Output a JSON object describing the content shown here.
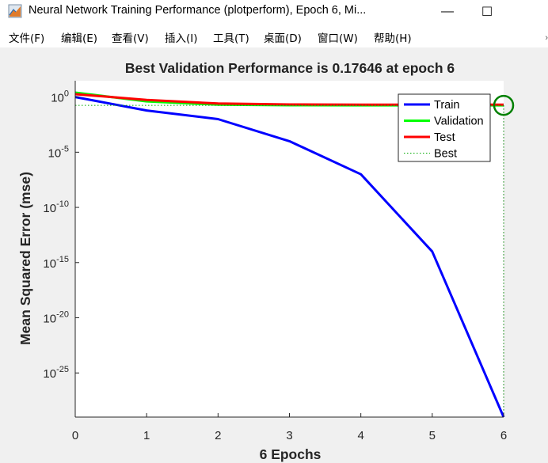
{
  "window": {
    "title": "Neural Network Training Performance (plotperform), Epoch 6, Mi...",
    "minimize_glyph": "—",
    "maximize_glyph": "☐",
    "app_icon": "matlab-figure-icon"
  },
  "menu": {
    "items": [
      "文件(F)",
      "编辑(E)",
      "查看(V)",
      "插入(I)",
      "工具(T)",
      "桌面(D)",
      "窗口(W)",
      "帮助(H)"
    ]
  },
  "chart_data": {
    "type": "line",
    "title": "Best Validation Performance is 0.17646 at epoch 6",
    "xlabel": "6 Epochs",
    "ylabel": "Mean Squared Error  (mse)",
    "xlim": [
      0,
      6
    ],
    "ylim": [
      1e-29,
      30
    ],
    "yscale": "log",
    "xticks": [
      0,
      1,
      2,
      3,
      4,
      5,
      6
    ],
    "yticks": [
      {
        "value": 1,
        "base": "10",
        "exp": "0"
      },
      {
        "value": 1e-05,
        "base": "10",
        "exp": "-5"
      },
      {
        "value": 1e-10,
        "base": "10",
        "exp": "-10"
      },
      {
        "value": 1e-15,
        "base": "10",
        "exp": "-15"
      },
      {
        "value": 1e-20,
        "base": "10",
        "exp": "-20"
      },
      {
        "value": 1e-25,
        "base": "10",
        "exp": "-25"
      }
    ],
    "grid": false,
    "legend_position": "top-right",
    "series": [
      {
        "name": "Train",
        "color": "#0000ff",
        "style": "solid",
        "x": [
          0,
          1,
          2,
          3,
          4,
          5,
          6
        ],
        "y": [
          1.0,
          0.06,
          0.01,
          0.0001,
          1e-07,
          1e-14,
          1e-29
        ]
      },
      {
        "name": "Validation",
        "color": "#00ff00",
        "style": "solid",
        "x": [
          0,
          1,
          2,
          3,
          4,
          5,
          6
        ],
        "y": [
          2.5,
          0.4,
          0.2,
          0.18,
          0.177,
          0.1765,
          0.17646
        ]
      },
      {
        "name": "Test",
        "color": "#ff0000",
        "style": "solid",
        "x": [
          0,
          1,
          2,
          3,
          4,
          5,
          6
        ],
        "y": [
          1.8,
          0.55,
          0.26,
          0.21,
          0.2,
          0.2,
          0.2
        ]
      },
      {
        "name": "Best",
        "color": "#00aa00",
        "style": "dotted",
        "x": [
          0,
          6
        ],
        "y": [
          0.17646,
          0.17646
        ]
      }
    ],
    "best_marker": {
      "x": 6,
      "y": 0.17646,
      "color": "#008000"
    }
  }
}
